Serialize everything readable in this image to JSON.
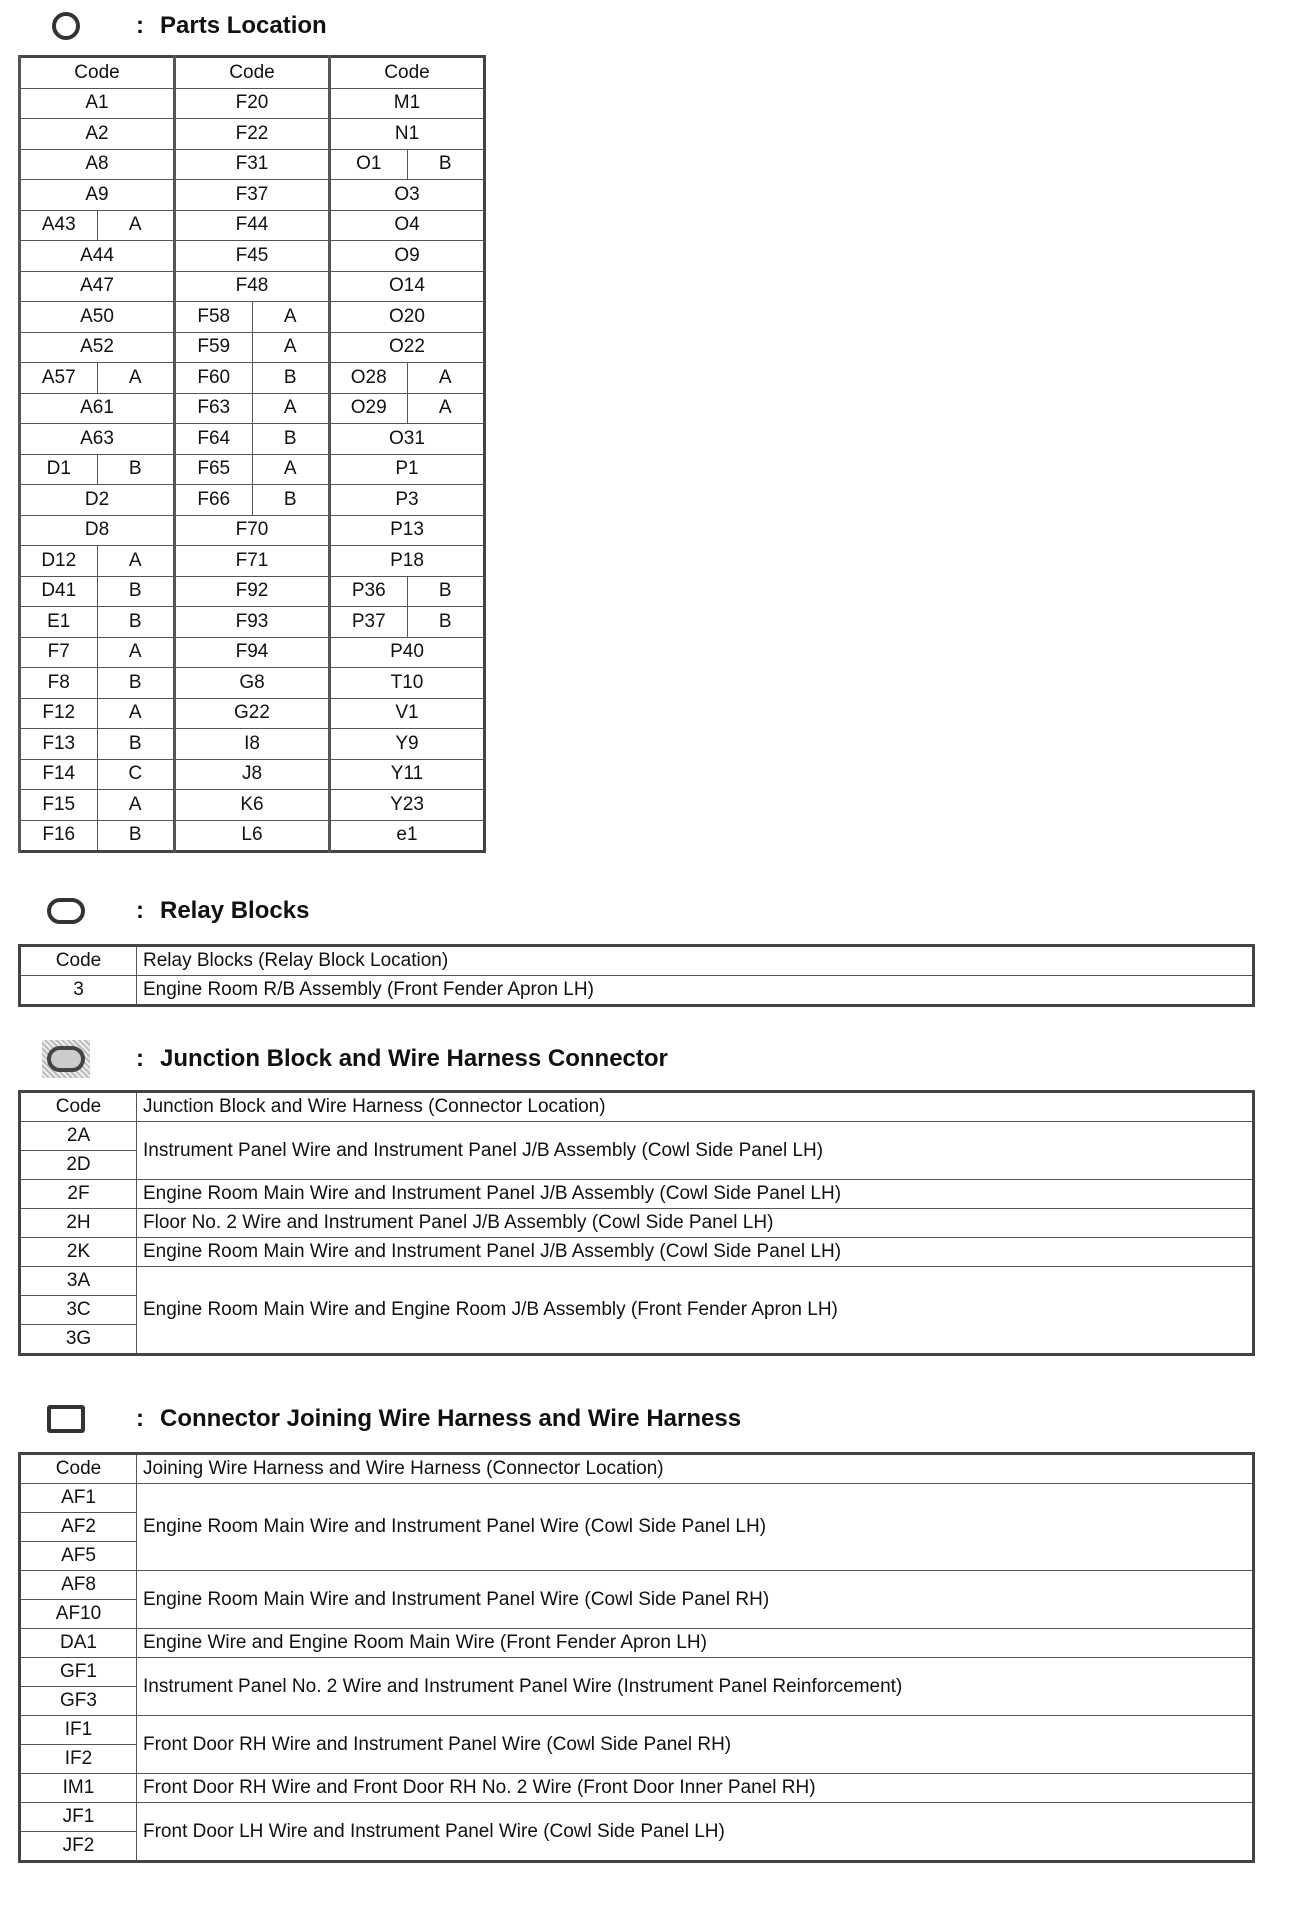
{
  "parts_location": {
    "title": "Parts Location",
    "colon": ":",
    "icon": "circle-icon",
    "header": [
      "Code",
      "Code",
      "Code"
    ],
    "columns": [
      [
        "A1",
        "A2",
        "A8",
        "A9",
        [
          "A43",
          "A"
        ],
        "A44",
        "A47",
        "A50",
        "A52",
        [
          "A57",
          "A"
        ],
        "A61",
        "A63",
        [
          "D1",
          "B"
        ],
        "D2",
        "D8",
        [
          "D12",
          "A"
        ],
        [
          "D41",
          "B"
        ],
        [
          "E1",
          "B"
        ],
        [
          "F7",
          "A"
        ],
        [
          "F8",
          "B"
        ],
        [
          "F12",
          "A"
        ],
        [
          "F13",
          "B"
        ],
        [
          "F14",
          "C"
        ],
        [
          "F15",
          "A"
        ],
        [
          "F16",
          "B"
        ]
      ],
      [
        "F20",
        "F22",
        "F31",
        "F37",
        "F44",
        "F45",
        "F48",
        [
          "F58",
          "A"
        ],
        [
          "F59",
          "A"
        ],
        [
          "F60",
          "B"
        ],
        [
          "F63",
          "A"
        ],
        [
          "F64",
          "B"
        ],
        [
          "F65",
          "A"
        ],
        [
          "F66",
          "B"
        ],
        "F70",
        "F71",
        "F92",
        "F93",
        "F94",
        "G8",
        "G22",
        "I8",
        "J8",
        "K6",
        "L6"
      ],
      [
        "M1",
        "N1",
        [
          "O1",
          "B"
        ],
        "O3",
        "O4",
        "O9",
        "O14",
        "O20",
        "O22",
        [
          "O28",
          "A"
        ],
        [
          "O29",
          "A"
        ],
        "O31",
        "P1",
        "P3",
        "P13",
        "P18",
        [
          "P36",
          "B"
        ],
        [
          "P37",
          "B"
        ],
        "P40",
        "T10",
        "V1",
        "Y9",
        "Y11",
        "Y23",
        "e1"
      ]
    ]
  },
  "relay_blocks": {
    "title": "Relay Blocks",
    "colon": ":",
    "icon": "oval-icon",
    "header": [
      "Code",
      "Relay Blocks (Relay Block Location)"
    ],
    "groups": [
      {
        "codes": [
          "3"
        ],
        "location": "Engine Room R/B Assembly (Front Fender Apron LH)"
      }
    ]
  },
  "junction_blocks": {
    "title": "Junction Block and Wire Harness Connector",
    "colon": ":",
    "icon": "shaded-oval-icon",
    "header": [
      "Code",
      "Junction Block and Wire Harness (Connector Location)"
    ],
    "groups": [
      {
        "codes": [
          "2A",
          "2D"
        ],
        "location": "Instrument Panel Wire and Instrument Panel J/B Assembly (Cowl Side Panel LH)"
      },
      {
        "codes": [
          "2F"
        ],
        "location": "Engine Room Main Wire and Instrument Panel J/B Assembly (Cowl Side Panel LH)"
      },
      {
        "codes": [
          "2H"
        ],
        "location": "Floor No. 2 Wire and Instrument Panel J/B Assembly (Cowl Side Panel LH)"
      },
      {
        "codes": [
          "2K"
        ],
        "location": "Engine Room Main Wire and Instrument Panel J/B Assembly (Cowl Side Panel LH)"
      },
      {
        "codes": [
          "3A",
          "3C",
          "3G"
        ],
        "location": "Engine Room Main Wire and Engine Room J/B Assembly (Front Fender Apron LH)"
      }
    ]
  },
  "connector_joining": {
    "title": "Connector Joining Wire Harness and Wire Harness",
    "colon": ":",
    "icon": "rectangle-icon",
    "header": [
      "Code",
      "Joining Wire Harness and Wire Harness (Connector Location)"
    ],
    "groups": [
      {
        "codes": [
          "AF1",
          "AF2",
          "AF5"
        ],
        "location": "Engine Room Main Wire and Instrument Panel Wire (Cowl Side Panel LH)"
      },
      {
        "codes": [
          "AF8",
          "AF10"
        ],
        "location": "Engine Room Main Wire and Instrument Panel Wire (Cowl Side Panel RH)"
      },
      {
        "codes": [
          "DA1"
        ],
        "location": "Engine Wire and Engine Room Main Wire (Front Fender Apron LH)"
      },
      {
        "codes": [
          "GF1",
          "GF3"
        ],
        "location": "Instrument Panel No. 2 Wire and Instrument Panel Wire (Instrument Panel Reinforcement)"
      },
      {
        "codes": [
          "IF1",
          "IF2"
        ],
        "location": "Front Door RH Wire and Instrument Panel Wire (Cowl Side Panel RH)"
      },
      {
        "codes": [
          "IM1"
        ],
        "location": "Front Door RH Wire and Front Door RH No. 2 Wire (Front Door Inner Panel RH)"
      },
      {
        "codes": [
          "JF1",
          "JF2"
        ],
        "location": "Front Door LH Wire and Instrument Panel Wire (Cowl Side Panel LH)"
      }
    ]
  }
}
